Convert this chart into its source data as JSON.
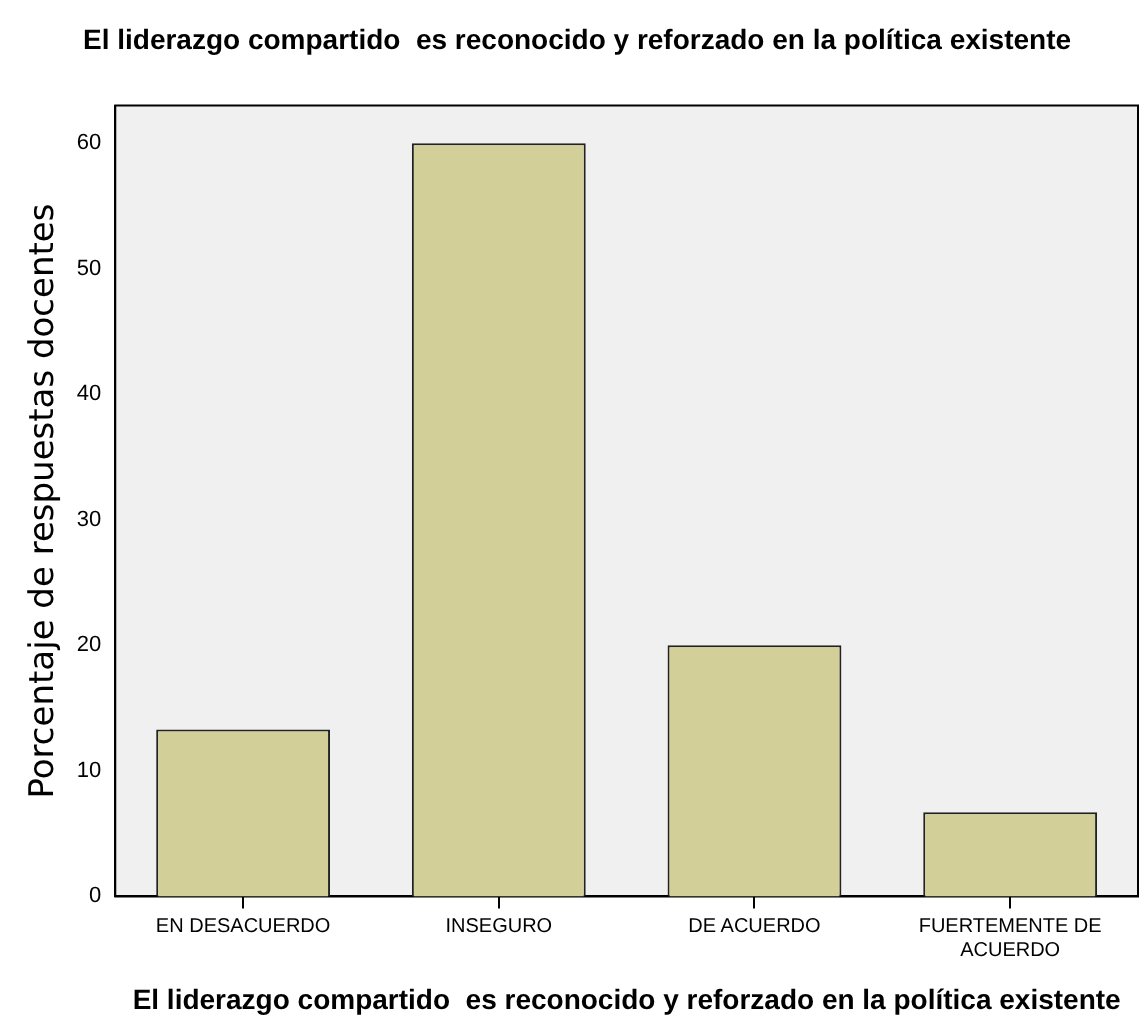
{
  "chart_data": {
    "type": "bar",
    "title": "El liderazgo compartido  es reconocido y reforzado en la política existente",
    "xlabel": "El liderazgo compartido  es reconocido y reforzado en la política existente",
    "ylabel": "Porcentaje de respuestas docentes",
    "categories": [
      "EN DESACUERDO",
      "INSEGURO",
      "DE ACUERDO",
      "FUERTEMENTE DE ACUERDO"
    ],
    "values": [
      13.3,
      60,
      20,
      6.7
    ],
    "color": "#d3cf98",
    "ylim": [
      0,
      63
    ],
    "yticks": [
      0,
      10,
      20,
      30,
      40,
      50,
      60
    ],
    "grid": false,
    "legend": false
  }
}
